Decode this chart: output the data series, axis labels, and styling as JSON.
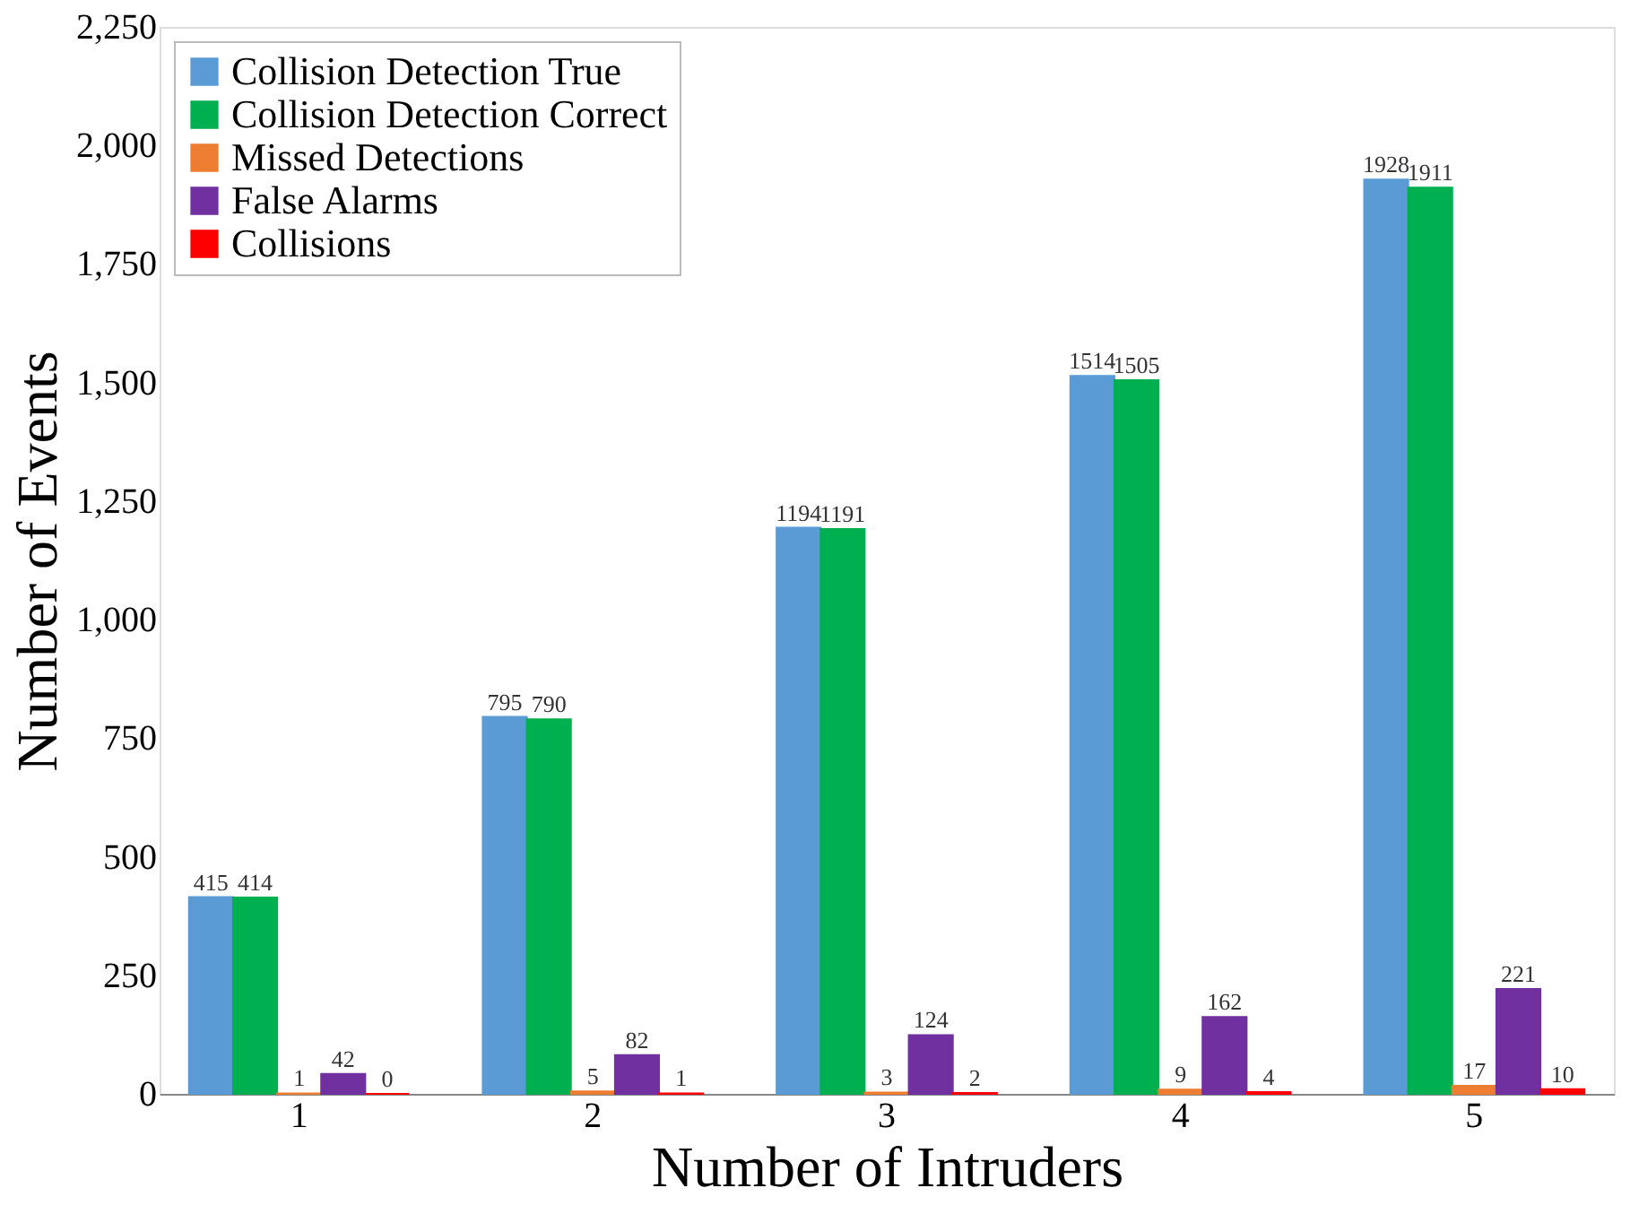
{
  "chart_data": {
    "type": "bar",
    "xlabel": "Number of Intruders",
    "ylabel": "Number of Events",
    "categories": [
      "1",
      "2",
      "3",
      "4",
      "5"
    ],
    "series": [
      {
        "name": "Collision Detection True",
        "color": "#5b9bd5",
        "values": [
          415,
          795,
          1194,
          1514,
          1928
        ]
      },
      {
        "name": "Collision Detection Correct",
        "color": "#00b050",
        "values": [
          414,
          790,
          1191,
          1505,
          1911
        ]
      },
      {
        "name": "Missed Detections",
        "color": "#ed7d31",
        "values": [
          1,
          5,
          3,
          9,
          17
        ]
      },
      {
        "name": "False Alarms",
        "color": "#7030a0",
        "values": [
          42,
          82,
          124,
          162,
          221
        ]
      },
      {
        "name": "Collisions",
        "color": "#ff0000",
        "values": [
          0,
          1,
          2,
          4,
          10
        ]
      }
    ],
    "ylim": [
      0,
      2250
    ],
    "yticks": [
      0,
      250,
      500,
      750,
      {
        "value": 1000,
        "label": "1,000"
      },
      {
        "value": 1250,
        "label": "1,250"
      },
      {
        "value": 1500,
        "label": "1,500"
      },
      {
        "value": 1750,
        "label": "1,750"
      },
      {
        "value": 2000,
        "label": "2,000"
      },
      {
        "value": 2250,
        "label": "2,250"
      }
    ],
    "data_labels": true,
    "grid": false,
    "legend": "top left"
  }
}
